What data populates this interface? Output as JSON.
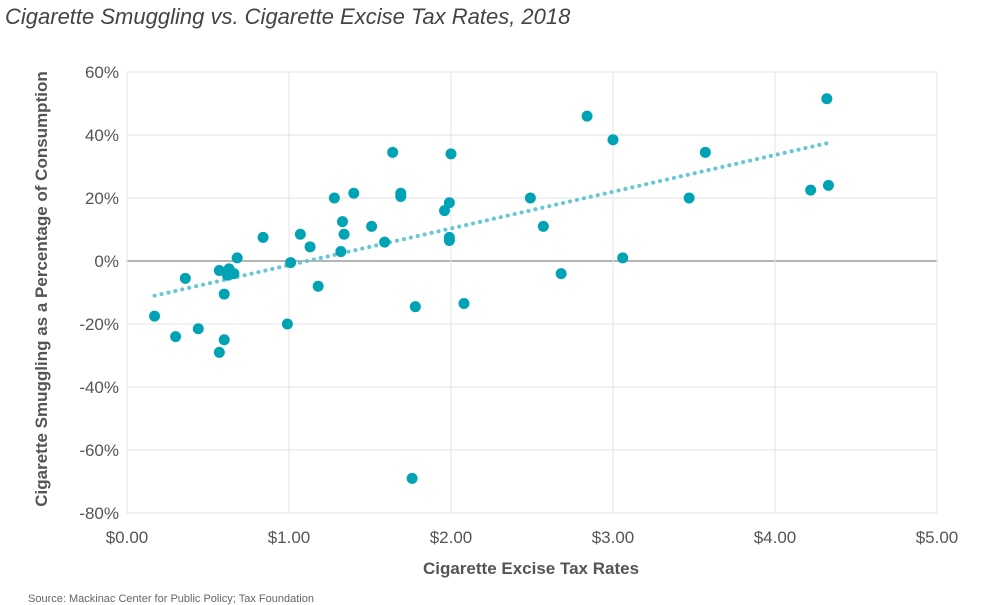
{
  "chart_data": {
    "type": "scatter",
    "title": "Cigarette Smuggling vs. Cigarette Excise Tax Rates, 2018",
    "xlabel": "Cigarette Excise Tax Rates",
    "ylabel": "Cigarette Smuggling as a Percentage of Consumption",
    "xlim": [
      0,
      5
    ],
    "ylim": [
      -80,
      60
    ],
    "x_ticks": [
      0,
      1,
      2,
      3,
      4,
      5
    ],
    "x_tick_labels": [
      "$0.00",
      "$1.00",
      "$2.00",
      "$3.00",
      "$4.00",
      "$5.00"
    ],
    "y_ticks": [
      60,
      40,
      20,
      0,
      -20,
      -40,
      -60,
      -80
    ],
    "y_tick_labels": [
      "60%",
      "40%",
      "20%",
      "0%",
      "-20%",
      "-40%",
      "-60%",
      "-80%"
    ],
    "grid": true,
    "series": [
      {
        "points": [
          [
            0.17,
            -17.5
          ],
          [
            0.3,
            -24.0
          ],
          [
            0.36,
            -5.5
          ],
          [
            0.44,
            -21.5
          ],
          [
            0.57,
            -3.0
          ],
          [
            0.57,
            -29.0
          ],
          [
            0.6,
            -10.5
          ],
          [
            0.6,
            -25.0
          ],
          [
            0.62,
            -4.5
          ],
          [
            0.63,
            -2.5
          ],
          [
            0.64,
            -3.5
          ],
          [
            0.66,
            -4.0
          ],
          [
            0.68,
            1.0
          ],
          [
            0.84,
            7.5
          ],
          [
            0.99,
            -20.0
          ],
          [
            1.01,
            -0.5
          ],
          [
            1.07,
            8.5
          ],
          [
            1.13,
            4.5
          ],
          [
            1.18,
            -8.0
          ],
          [
            1.28,
            20.0
          ],
          [
            1.32,
            3.0
          ],
          [
            1.33,
            12.5
          ],
          [
            1.34,
            8.5
          ],
          [
            1.4,
            21.5
          ],
          [
            1.51,
            11.0
          ],
          [
            1.59,
            6.0
          ],
          [
            1.64,
            34.5
          ],
          [
            1.69,
            20.5
          ],
          [
            1.69,
            21.5
          ],
          [
            1.76,
            -69.0
          ],
          [
            1.78,
            -14.5
          ],
          [
            1.96,
            16.0
          ],
          [
            1.99,
            18.5
          ],
          [
            1.99,
            7.5
          ],
          [
            2.0,
            34.0
          ],
          [
            1.99,
            6.5
          ],
          [
            2.08,
            -13.5
          ],
          [
            2.49,
            20.0
          ],
          [
            2.57,
            11.0
          ],
          [
            2.68,
            -4.0
          ],
          [
            2.84,
            46.0
          ],
          [
            3.0,
            38.5
          ],
          [
            3.06,
            1.0
          ],
          [
            3.47,
            20.0
          ],
          [
            3.57,
            34.5
          ],
          [
            4.22,
            22.5
          ],
          [
            4.32,
            51.5
          ],
          [
            4.33,
            24.0
          ]
        ],
        "color": "#00a3b4"
      }
    ],
    "trendline": {
      "type": "linear",
      "x_range": [
        0.17,
        4.33
      ],
      "y_range": [
        -11.0,
        37.5
      ],
      "style": "dotted",
      "color": "#66c8d4"
    }
  },
  "source": "Source: Mackinac Center for Public Policy; Tax Foundation"
}
